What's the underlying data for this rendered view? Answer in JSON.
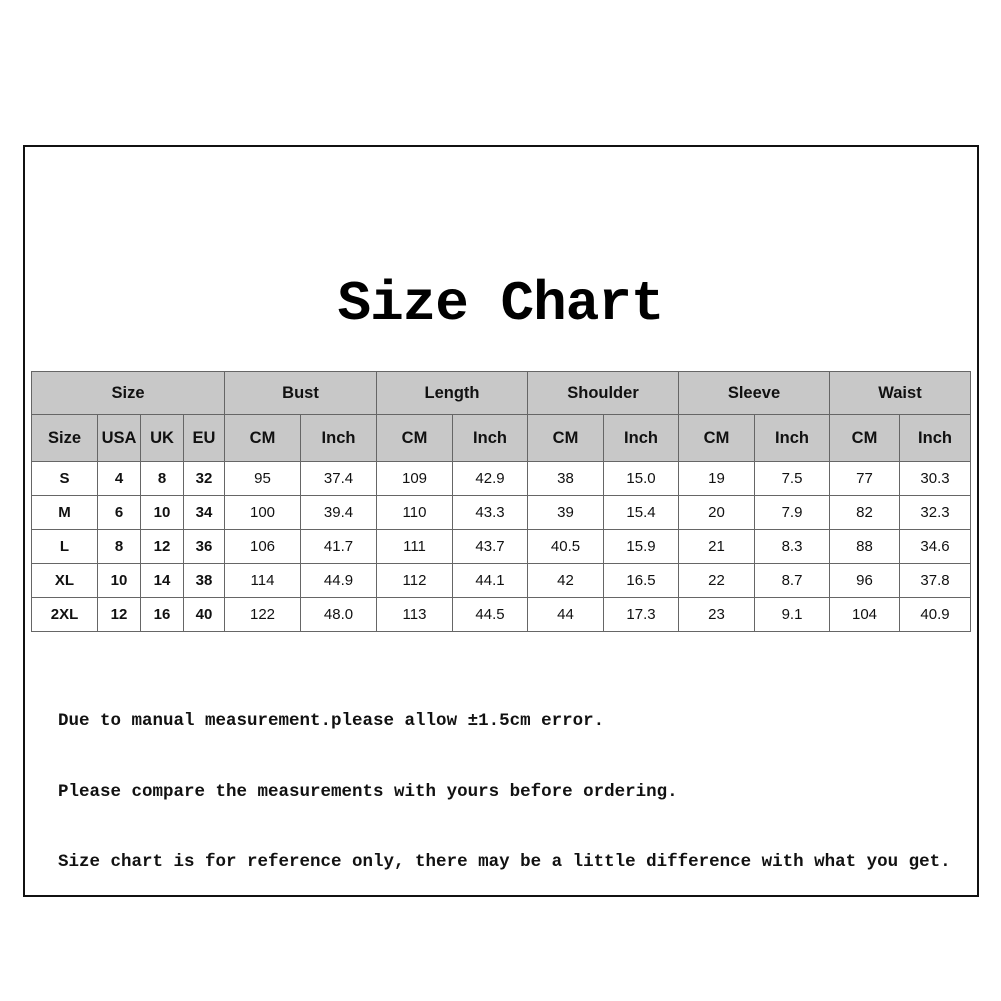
{
  "title": "Size Chart",
  "table": {
    "group_headers": [
      "Size",
      "Bust",
      "Length",
      "Shoulder",
      "Sleeve",
      "Waist"
    ],
    "sub_headers": [
      "Size",
      "USA",
      "UK",
      "EU",
      "CM",
      "Inch",
      "CM",
      "Inch",
      "CM",
      "Inch",
      "CM",
      "Inch",
      "CM",
      "Inch"
    ],
    "rows": [
      [
        "S",
        "4",
        "8",
        "32",
        "95",
        "37.4",
        "109",
        "42.9",
        "38",
        "15.0",
        "19",
        "7.5",
        "77",
        "30.3"
      ],
      [
        "M",
        "6",
        "10",
        "34",
        "100",
        "39.4",
        "110",
        "43.3",
        "39",
        "15.4",
        "20",
        "7.9",
        "82",
        "32.3"
      ],
      [
        "L",
        "8",
        "12",
        "36",
        "106",
        "41.7",
        "111",
        "43.7",
        "40.5",
        "15.9",
        "21",
        "8.3",
        "88",
        "34.6"
      ],
      [
        "XL",
        "10",
        "14",
        "38",
        "114",
        "44.9",
        "112",
        "44.1",
        "42",
        "16.5",
        "22",
        "8.7",
        "96",
        "37.8"
      ],
      [
        "2XL",
        "12",
        "16",
        "40",
        "122",
        "48.0",
        "113",
        "44.5",
        "44",
        "17.3",
        "23",
        "9.1",
        "104",
        "40.9"
      ]
    ]
  },
  "notes": [
    "Due to manual measurement.please allow ±1.5cm error.",
    "Please compare the measurements with yours before ordering.",
    "Size chart is for reference only, there may be a little difference with what you get."
  ],
  "colors": {
    "header_bg": "#c8c8c8",
    "border": "#666666"
  }
}
